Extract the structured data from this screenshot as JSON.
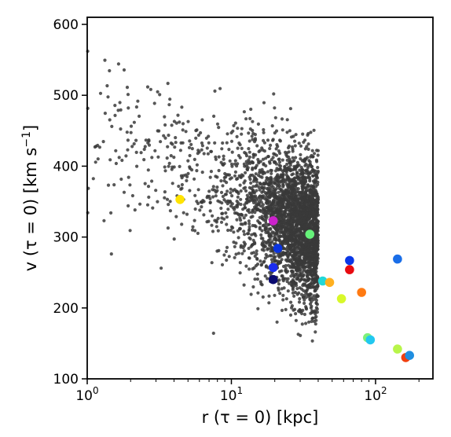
{
  "chart_data": {
    "type": "scatter",
    "title": "",
    "xscale": "log",
    "xlim": [
      1,
      250
    ],
    "ylim": [
      100,
      610
    ],
    "grid": false,
    "xlabel": {
      "pre": "r (τ = 0) [kpc]"
    },
    "ylabel": {
      "pre": "v (τ = 0) [km s",
      "sup": "−1",
      "post": "]"
    },
    "xticks": [
      {
        "value": 1,
        "base": "10",
        "exp": "0"
      },
      {
        "value": 10,
        "base": "10",
        "exp": "1"
      },
      {
        "value": 100,
        "base": "10",
        "exp": "2"
      }
    ],
    "yticks": [
      100,
      200,
      300,
      400,
      500,
      600
    ],
    "background_points": {
      "color": "#3a3a3a",
      "count": 3200,
      "approx_x_range": [
        1,
        40
      ],
      "approx_y_range": [
        115,
        565
      ],
      "densest_region": {
        "x": [
          15,
          40
        ],
        "y": [
          220,
          400
        ]
      },
      "x_edge": 40
    },
    "highlighted_points": [
      {
        "x": 4.4,
        "y": 353,
        "color": "#ffe300"
      },
      {
        "x": 19.5,
        "y": 323,
        "color": "#cc22cc"
      },
      {
        "x": 35,
        "y": 304,
        "color": "#66f27a"
      },
      {
        "x": 21,
        "y": 284,
        "color": "#0b34e0"
      },
      {
        "x": 19.5,
        "y": 257,
        "color": "#1a2cf0"
      },
      {
        "x": 19.5,
        "y": 240,
        "color": "#0a0a70"
      },
      {
        "x": 43,
        "y": 238,
        "color": "#22d8d8"
      },
      {
        "x": 48,
        "y": 236,
        "color": "#ffb020"
      },
      {
        "x": 58,
        "y": 213,
        "color": "#d8f82a"
      },
      {
        "x": 66,
        "y": 267,
        "color": "#0a38e8"
      },
      {
        "x": 66,
        "y": 254,
        "color": "#e80a10"
      },
      {
        "x": 80,
        "y": 222,
        "color": "#ff7a12"
      },
      {
        "x": 88,
        "y": 158,
        "color": "#7ef07a"
      },
      {
        "x": 92,
        "y": 155,
        "color": "#22c8f0"
      },
      {
        "x": 142,
        "y": 269,
        "color": "#1a6ee8"
      },
      {
        "x": 142,
        "y": 142,
        "color": "#b8f54a"
      },
      {
        "x": 162,
        "y": 130,
        "color": "#f04010"
      },
      {
        "x": 172,
        "y": 133,
        "color": "#1f8ee0"
      }
    ]
  }
}
